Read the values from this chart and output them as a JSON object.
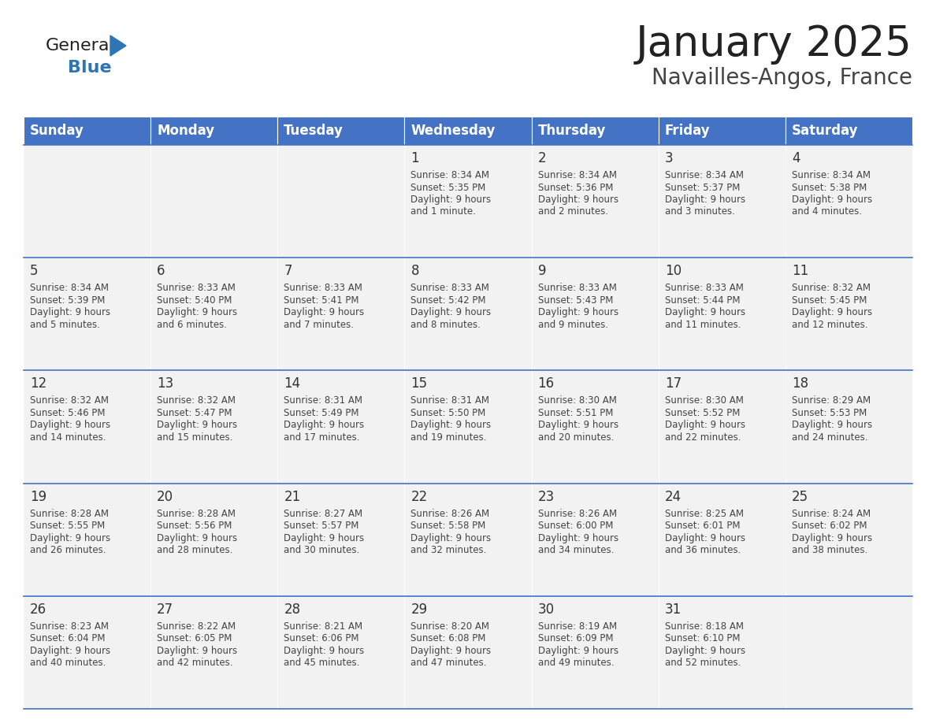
{
  "title": "January 2025",
  "subtitle": "Navailles-Angos, France",
  "header_bg": "#4472C4",
  "header_text_color": "#FFFFFF",
  "days_of_week": [
    "Sunday",
    "Monday",
    "Tuesday",
    "Wednesday",
    "Thursday",
    "Friday",
    "Saturday"
  ],
  "row_bg": "#F2F2F2",
  "cell_border_color": "#4472C4",
  "day_number_color": "#333333",
  "text_color": "#444444",
  "title_color": "#222222",
  "subtitle_color": "#444444",
  "logo_general_color": "#222222",
  "logo_blue_color": "#2E75B6",
  "calendar_data": [
    {
      "day": 1,
      "col": 3,
      "row": 0,
      "sunrise": "8:34 AM",
      "sunset": "5:35 PM",
      "daylight": "9 hours and 1 minute."
    },
    {
      "day": 2,
      "col": 4,
      "row": 0,
      "sunrise": "8:34 AM",
      "sunset": "5:36 PM",
      "daylight": "9 hours and 2 minutes."
    },
    {
      "day": 3,
      "col": 5,
      "row": 0,
      "sunrise": "8:34 AM",
      "sunset": "5:37 PM",
      "daylight": "9 hours and 3 minutes."
    },
    {
      "day": 4,
      "col": 6,
      "row": 0,
      "sunrise": "8:34 AM",
      "sunset": "5:38 PM",
      "daylight": "9 hours and 4 minutes."
    },
    {
      "day": 5,
      "col": 0,
      "row": 1,
      "sunrise": "8:34 AM",
      "sunset": "5:39 PM",
      "daylight": "9 hours and 5 minutes."
    },
    {
      "day": 6,
      "col": 1,
      "row": 1,
      "sunrise": "8:33 AM",
      "sunset": "5:40 PM",
      "daylight": "9 hours and 6 minutes."
    },
    {
      "day": 7,
      "col": 2,
      "row": 1,
      "sunrise": "8:33 AM",
      "sunset": "5:41 PM",
      "daylight": "9 hours and 7 minutes."
    },
    {
      "day": 8,
      "col": 3,
      "row": 1,
      "sunrise": "8:33 AM",
      "sunset": "5:42 PM",
      "daylight": "9 hours and 8 minutes."
    },
    {
      "day": 9,
      "col": 4,
      "row": 1,
      "sunrise": "8:33 AM",
      "sunset": "5:43 PM",
      "daylight": "9 hours and 9 minutes."
    },
    {
      "day": 10,
      "col": 5,
      "row": 1,
      "sunrise": "8:33 AM",
      "sunset": "5:44 PM",
      "daylight": "9 hours and 11 minutes."
    },
    {
      "day": 11,
      "col": 6,
      "row": 1,
      "sunrise": "8:32 AM",
      "sunset": "5:45 PM",
      "daylight": "9 hours and 12 minutes."
    },
    {
      "day": 12,
      "col": 0,
      "row": 2,
      "sunrise": "8:32 AM",
      "sunset": "5:46 PM",
      "daylight": "9 hours and 14 minutes."
    },
    {
      "day": 13,
      "col": 1,
      "row": 2,
      "sunrise": "8:32 AM",
      "sunset": "5:47 PM",
      "daylight": "9 hours and 15 minutes."
    },
    {
      "day": 14,
      "col": 2,
      "row": 2,
      "sunrise": "8:31 AM",
      "sunset": "5:49 PM",
      "daylight": "9 hours and 17 minutes."
    },
    {
      "day": 15,
      "col": 3,
      "row": 2,
      "sunrise": "8:31 AM",
      "sunset": "5:50 PM",
      "daylight": "9 hours and 19 minutes."
    },
    {
      "day": 16,
      "col": 4,
      "row": 2,
      "sunrise": "8:30 AM",
      "sunset": "5:51 PM",
      "daylight": "9 hours and 20 minutes."
    },
    {
      "day": 17,
      "col": 5,
      "row": 2,
      "sunrise": "8:30 AM",
      "sunset": "5:52 PM",
      "daylight": "9 hours and 22 minutes."
    },
    {
      "day": 18,
      "col": 6,
      "row": 2,
      "sunrise": "8:29 AM",
      "sunset": "5:53 PM",
      "daylight": "9 hours and 24 minutes."
    },
    {
      "day": 19,
      "col": 0,
      "row": 3,
      "sunrise": "8:28 AM",
      "sunset": "5:55 PM",
      "daylight": "9 hours and 26 minutes."
    },
    {
      "day": 20,
      "col": 1,
      "row": 3,
      "sunrise": "8:28 AM",
      "sunset": "5:56 PM",
      "daylight": "9 hours and 28 minutes."
    },
    {
      "day": 21,
      "col": 2,
      "row": 3,
      "sunrise": "8:27 AM",
      "sunset": "5:57 PM",
      "daylight": "9 hours and 30 minutes."
    },
    {
      "day": 22,
      "col": 3,
      "row": 3,
      "sunrise": "8:26 AM",
      "sunset": "5:58 PM",
      "daylight": "9 hours and 32 minutes."
    },
    {
      "day": 23,
      "col": 4,
      "row": 3,
      "sunrise": "8:26 AM",
      "sunset": "6:00 PM",
      "daylight": "9 hours and 34 minutes."
    },
    {
      "day": 24,
      "col": 5,
      "row": 3,
      "sunrise": "8:25 AM",
      "sunset": "6:01 PM",
      "daylight": "9 hours and 36 minutes."
    },
    {
      "day": 25,
      "col": 6,
      "row": 3,
      "sunrise": "8:24 AM",
      "sunset": "6:02 PM",
      "daylight": "9 hours and 38 minutes."
    },
    {
      "day": 26,
      "col": 0,
      "row": 4,
      "sunrise": "8:23 AM",
      "sunset": "6:04 PM",
      "daylight": "9 hours and 40 minutes."
    },
    {
      "day": 27,
      "col": 1,
      "row": 4,
      "sunrise": "8:22 AM",
      "sunset": "6:05 PM",
      "daylight": "9 hours and 42 minutes."
    },
    {
      "day": 28,
      "col": 2,
      "row": 4,
      "sunrise": "8:21 AM",
      "sunset": "6:06 PM",
      "daylight": "9 hours and 45 minutes."
    },
    {
      "day": 29,
      "col": 3,
      "row": 4,
      "sunrise": "8:20 AM",
      "sunset": "6:08 PM",
      "daylight": "9 hours and 47 minutes."
    },
    {
      "day": 30,
      "col": 4,
      "row": 4,
      "sunrise": "8:19 AM",
      "sunset": "6:09 PM",
      "daylight": "9 hours and 49 minutes."
    },
    {
      "day": 31,
      "col": 5,
      "row": 4,
      "sunrise": "8:18 AM",
      "sunset": "6:10 PM",
      "daylight": "9 hours and 52 minutes."
    }
  ]
}
